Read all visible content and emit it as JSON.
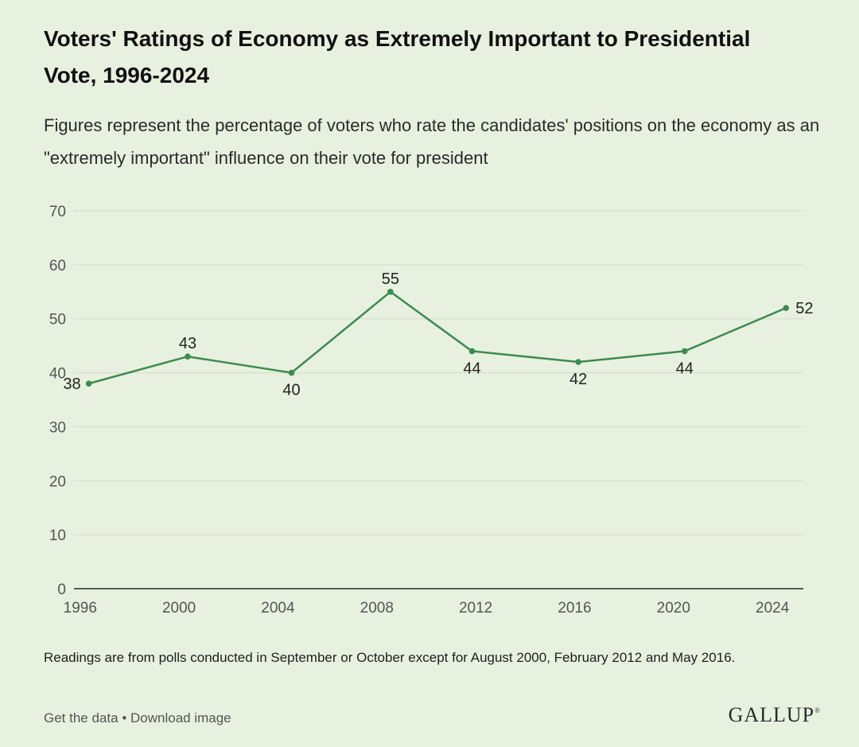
{
  "header": {
    "title": "Voters' Ratings of Economy as Extremely Important to Presidential Vote, 1996-2024",
    "subtitle": "Figures represent the percentage of voters who rate the candidates' positions on the economy as an \"extremely important\" influence on their vote for president"
  },
  "chart_data": {
    "type": "line",
    "title": "",
    "xlabel": "",
    "ylabel": "",
    "x": [
      1996.6,
      2000.6,
      2004.8,
      2008.8,
      2012.1,
      2016.4,
      2020.7,
      2024.8
    ],
    "values": [
      38,
      43,
      40,
      55,
      44,
      42,
      44,
      52
    ],
    "labels": [
      "38",
      "43",
      "40",
      "55",
      "44",
      "42",
      "44",
      "52"
    ],
    "label_positions": [
      "left",
      "above",
      "below",
      "above",
      "below",
      "below",
      "below",
      "right"
    ],
    "xticks": [
      "1996",
      "2000",
      "2004",
      "2008",
      "2012",
      "2016",
      "2020",
      "2024"
    ],
    "yticks": [
      "0",
      "10",
      "20",
      "30",
      "40",
      "50",
      "60",
      "70"
    ],
    "xlim": [
      1996,
      2025.5
    ],
    "ylim": [
      0,
      70
    ],
    "grid": true,
    "legend": "none",
    "line_color": "#3d8b4f"
  },
  "footer": {
    "note": "Readings are from polls conducted in September or October except for August 2000, February 2012 and May 2016.",
    "get_data": "Get the data",
    "separator": "•",
    "download": "Download image",
    "logo": "GALLUP"
  },
  "colors": {
    "background": "#e8f1e0",
    "grid": "#cfdcc5",
    "axis": "#2a2a2a",
    "tick_text": "#555555",
    "line": "#3d8b4f"
  }
}
